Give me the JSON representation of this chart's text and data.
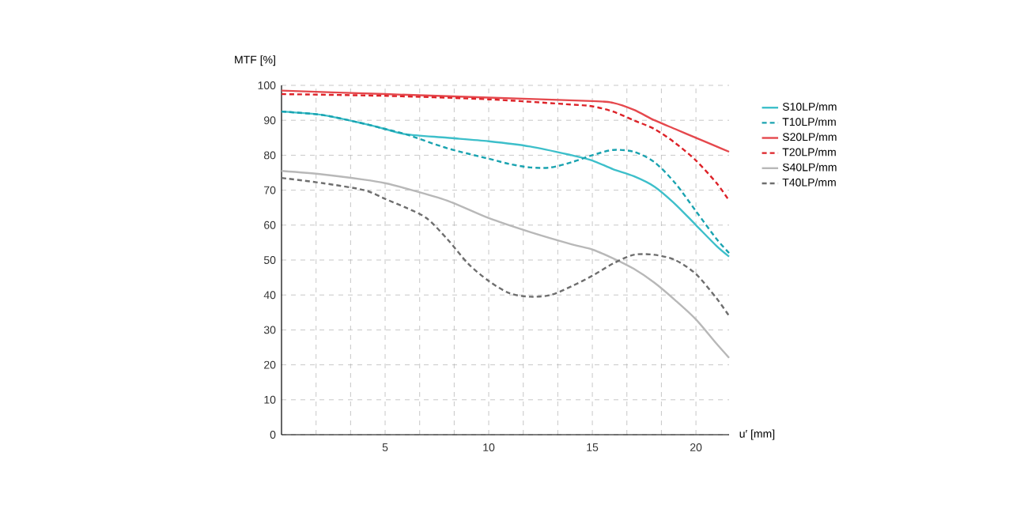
{
  "chart_data": {
    "type": "line",
    "xlabel": "u′ [mm]",
    "ylabel": "MTF [%]",
    "xlim": [
      0,
      21.6
    ],
    "ylim": [
      0,
      100
    ],
    "xticks": [
      {
        "value": 1.667,
        "label": null
      },
      {
        "value": 3.333,
        "label": null
      },
      5,
      {
        "value": 6.667,
        "label": null
      },
      {
        "value": 8.333,
        "label": null
      },
      10,
      {
        "value": 11.667,
        "label": null
      },
      {
        "value": 13.333,
        "label": null
      },
      15,
      {
        "value": 16.667,
        "label": null
      },
      {
        "value": 18.333,
        "label": null
      },
      20
    ],
    "yticks": [
      0,
      10,
      20,
      30,
      40,
      50,
      60,
      70,
      80,
      90,
      100
    ],
    "grid": true,
    "legend": "right",
    "marker": "none",
    "series": [
      {
        "name": "S10LP/mm",
        "color": "#3dbfca",
        "line_style": "solid",
        "x": [
          0,
          2,
          4,
          5,
          6,
          8,
          10,
          12,
          14,
          15,
          16,
          17,
          18,
          19,
          20,
          21,
          21.6
        ],
        "values": [
          92.5,
          91.5,
          89,
          87.5,
          86,
          85,
          84,
          82.5,
          80,
          78.5,
          76,
          74,
          71,
          66,
          60,
          54,
          51
        ]
      },
      {
        "name": "T10LP/mm",
        "color": "#1aa3b0",
        "line_style": "dashed",
        "x": [
          0,
          2,
          4,
          5,
          6,
          8,
          10,
          11,
          12,
          13,
          14,
          15,
          16,
          17,
          18,
          19,
          20,
          21,
          21.6
        ],
        "values": [
          92.5,
          91.5,
          89,
          87.5,
          86,
          82,
          79,
          77.5,
          76.5,
          76.5,
          78,
          80,
          81.5,
          81,
          78,
          72,
          64,
          56,
          52
        ]
      },
      {
        "name": "S20LP/mm",
        "color": "#e5484d",
        "line_style": "solid",
        "x": [
          0,
          5,
          10,
          15,
          16,
          17,
          18,
          19,
          20,
          21,
          21.6
        ],
        "values": [
          98.5,
          97.5,
          96.5,
          95.5,
          95,
          93,
          90,
          87.5,
          85,
          82.5,
          81
        ]
      },
      {
        "name": "T20LP/mm",
        "color": "#dd2228",
        "line_style": "dashed",
        "x": [
          0,
          5,
          10,
          14,
          15,
          16,
          17,
          18,
          19,
          20,
          21,
          21.6
        ],
        "values": [
          97.5,
          97,
          96,
          94.5,
          94,
          92.5,
          90,
          87.5,
          83.5,
          78.5,
          72,
          67
        ]
      },
      {
        "name": "S40LP/mm",
        "color": "#b8b8b8",
        "line_style": "solid",
        "x": [
          0,
          2,
          4,
          5,
          6,
          8,
          10,
          12,
          14,
          15,
          16,
          17,
          18,
          19,
          20,
          21,
          21.6
        ],
        "values": [
          75.5,
          74.5,
          73,
          72,
          70.5,
          67,
          62,
          58,
          54.5,
          53,
          50.5,
          47.5,
          43.5,
          38.5,
          33,
          26,
          22
        ]
      },
      {
        "name": "T40LP/mm",
        "color": "#6e6e6e",
        "line_style": "dashed",
        "x": [
          0,
          2,
          4,
          5,
          6,
          7,
          8,
          9,
          10,
          11,
          12,
          13,
          14,
          15,
          16,
          17,
          18,
          19,
          20,
          21,
          21.6
        ],
        "values": [
          73.5,
          72,
          70,
          67.5,
          65,
          62,
          56,
          49,
          44,
          40.5,
          39.5,
          40,
          42.5,
          45.5,
          49,
          51.5,
          51.5,
          50,
          46,
          39,
          34
        ]
      }
    ]
  }
}
